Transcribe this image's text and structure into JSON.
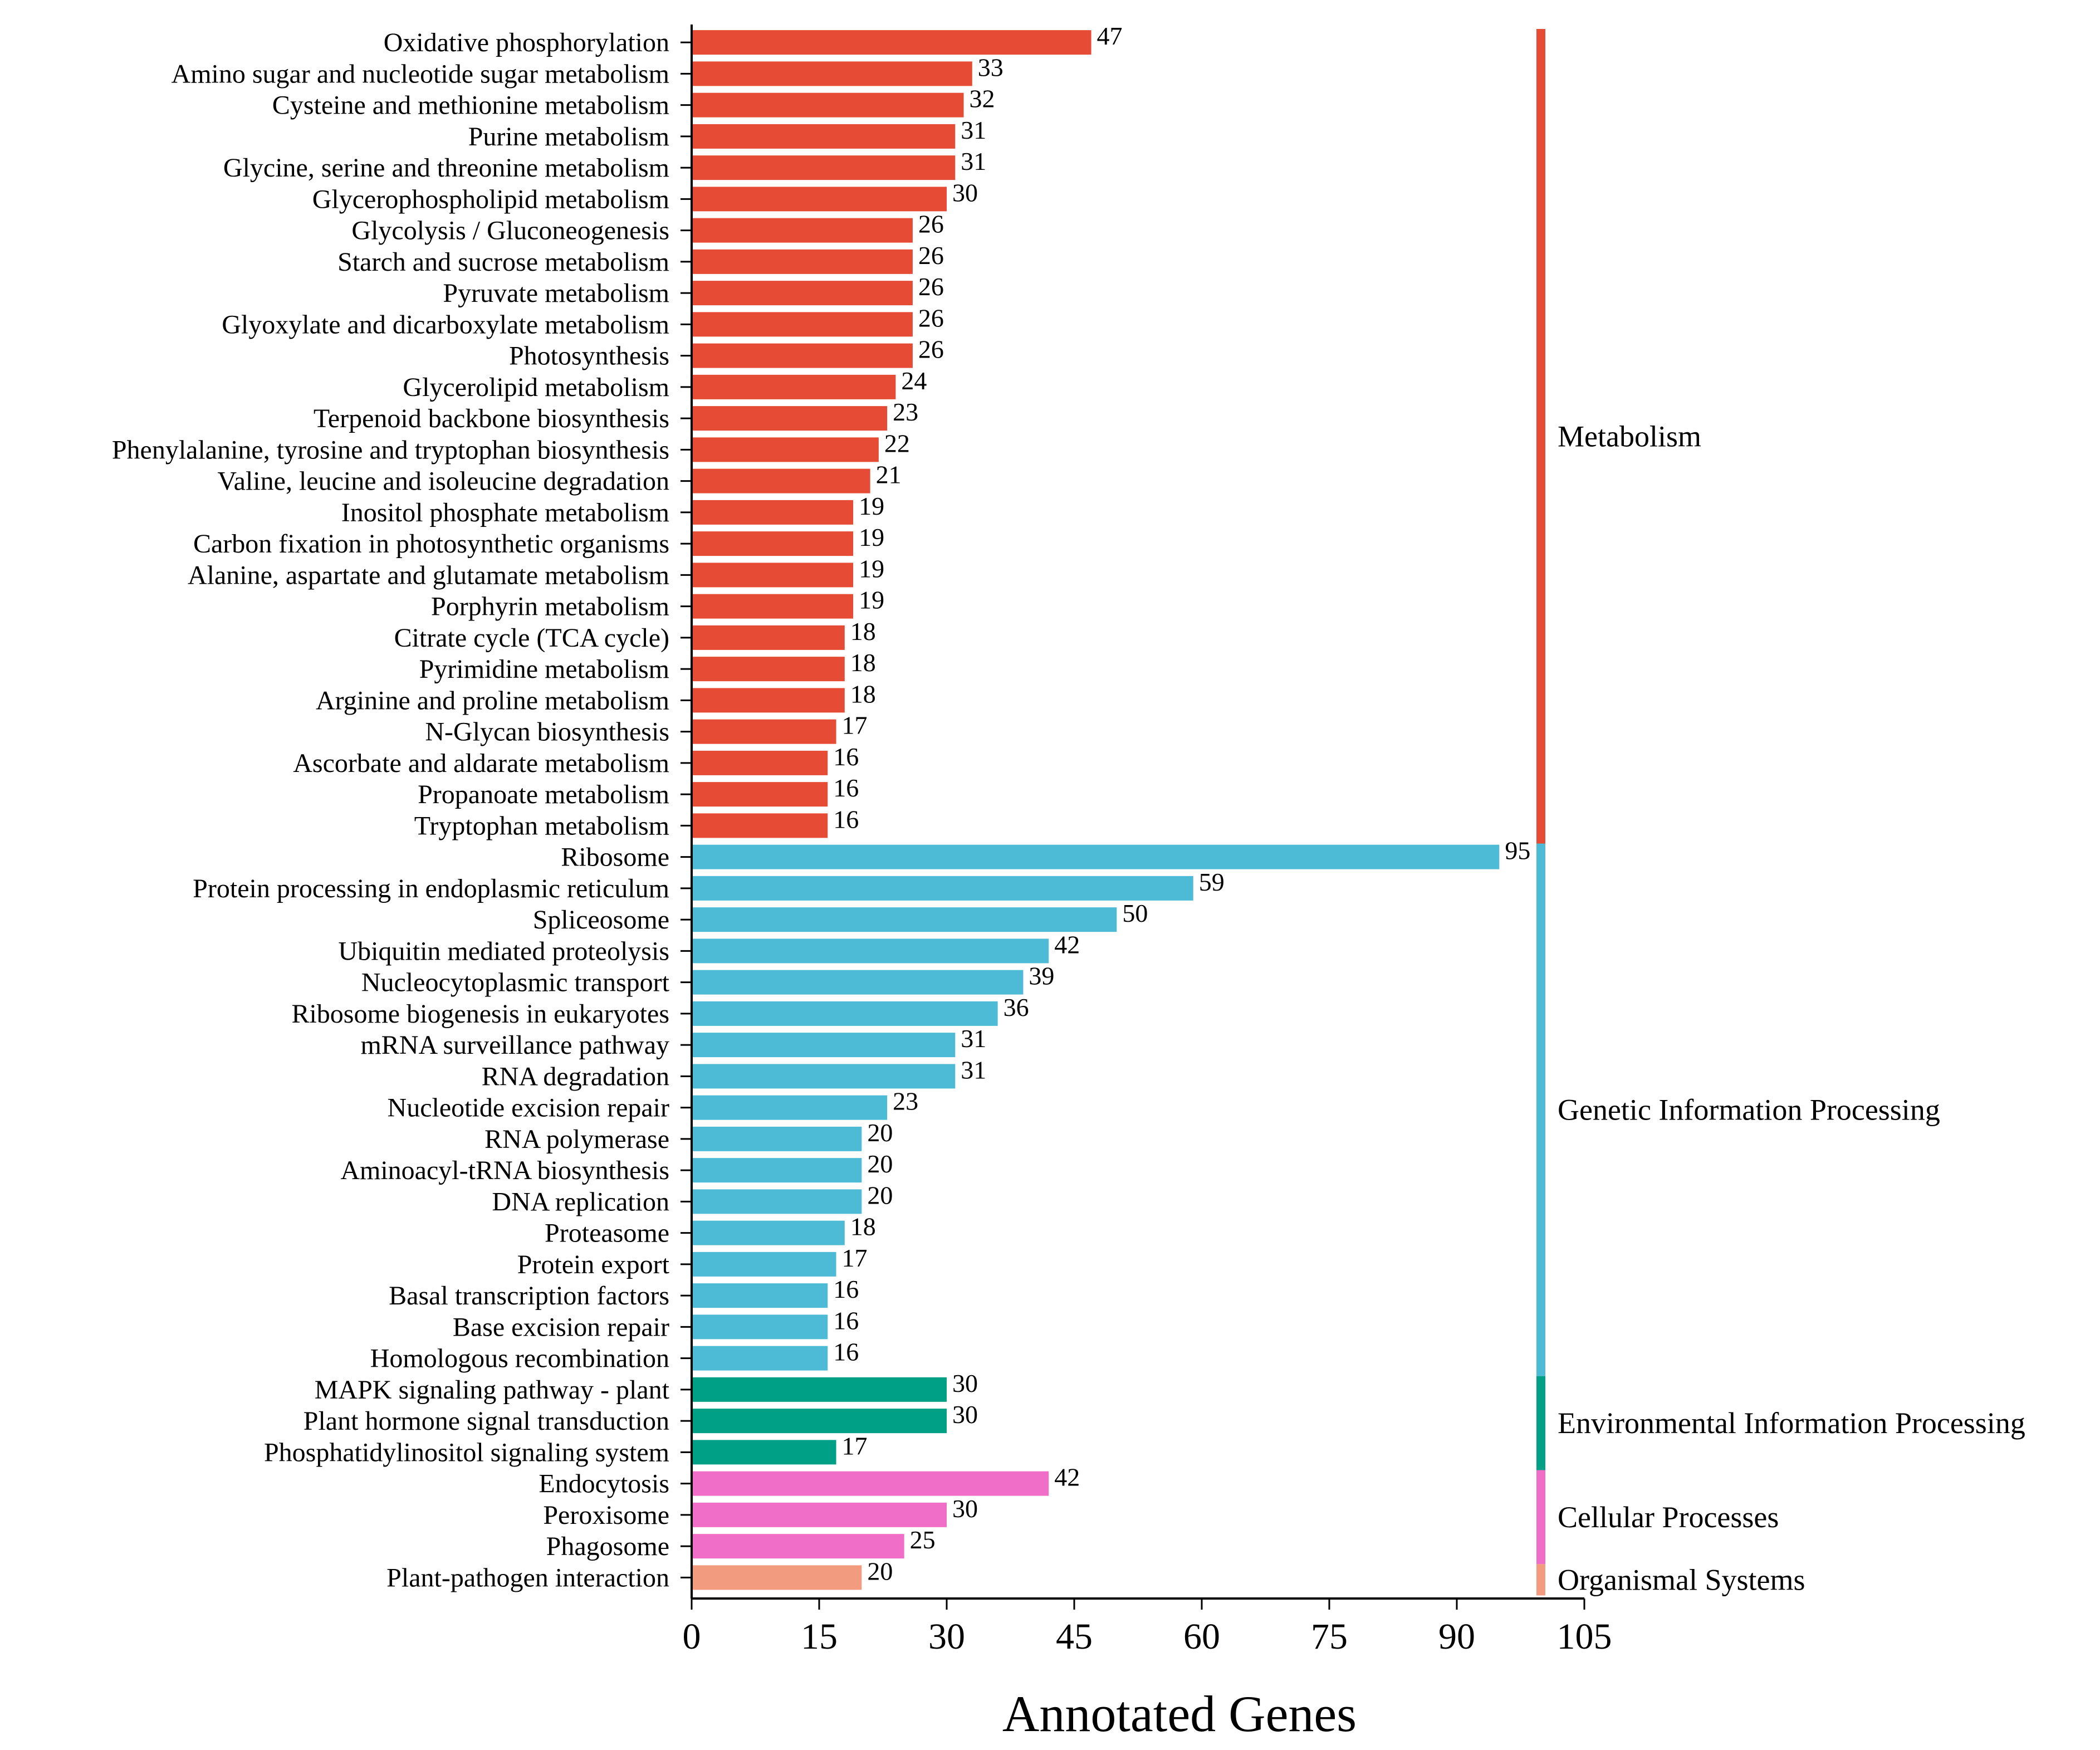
{
  "chart_data": {
    "type": "bar",
    "orientation": "horizontal",
    "xlabel": "Annotated Genes",
    "ylabel": "",
    "xlim": [
      0,
      105
    ],
    "xticks": [
      0,
      15,
      30,
      45,
      60,
      75,
      90,
      105
    ],
    "grid": false,
    "groups": [
      {
        "name": "Metabolism",
        "color": "#e64b35",
        "count": 26
      },
      {
        "name": "Genetic Information Processing",
        "color": "#4dbbd5",
        "count": 17
      },
      {
        "name": "Environmental Information Processing",
        "color": "#00a087",
        "count": 3
      },
      {
        "name": "Cellular Processes",
        "color": "#f06ec8",
        "count": 3
      },
      {
        "name": "Organismal Systems",
        "color": "#f39b7f",
        "count": 1
      }
    ],
    "categories": [
      "Oxidative phosphorylation",
      "Amino sugar and nucleotide sugar metabolism",
      "Cysteine and methionine metabolism",
      "Purine metabolism",
      "Glycine, serine and threonine metabolism",
      "Glycerophospholipid metabolism",
      "Glycolysis / Gluconeogenesis",
      "Starch and sucrose metabolism",
      "Pyruvate metabolism",
      "Glyoxylate and dicarboxylate metabolism",
      "Photosynthesis",
      "Glycerolipid metabolism",
      "Terpenoid backbone biosynthesis",
      "Phenylalanine, tyrosine and tryptophan biosynthesis",
      "Valine, leucine and isoleucine degradation",
      "Inositol phosphate metabolism",
      "Carbon fixation in photosynthetic organisms",
      "Alanine, aspartate and glutamate metabolism",
      "Porphyrin metabolism",
      "Citrate cycle (TCA cycle)",
      "Pyrimidine metabolism",
      "Arginine and proline metabolism",
      "N-Glycan biosynthesis",
      "Ascorbate and aldarate metabolism",
      "Propanoate metabolism",
      "Tryptophan metabolism",
      "Ribosome",
      "Protein processing in endoplasmic reticulum",
      "Spliceosome",
      "Ubiquitin mediated proteolysis",
      "Nucleocytoplasmic transport",
      "Ribosome biogenesis in eukaryotes",
      "mRNA surveillance pathway",
      "RNA degradation",
      "Nucleotide excision repair",
      "RNA polymerase",
      "Aminoacyl-tRNA biosynthesis",
      "DNA replication",
      "Proteasome",
      "Protein export",
      "Basal transcription factors",
      "Base excision repair",
      "Homologous recombination",
      "MAPK signaling pathway - plant",
      "Plant hormone signal transduction",
      "Phosphatidylinositol signaling system",
      "Endocytosis",
      "Peroxisome",
      "Phagosome",
      "Plant-pathogen interaction"
    ],
    "values": [
      47,
      33,
      32,
      31,
      31,
      30,
      26,
      26,
      26,
      26,
      26,
      24,
      23,
      22,
      21,
      19,
      19,
      19,
      19,
      18,
      18,
      18,
      17,
      16,
      16,
      16,
      95,
      59,
      50,
      42,
      39,
      36,
      31,
      31,
      23,
      20,
      20,
      20,
      18,
      17,
      16,
      16,
      16,
      30,
      30,
      17,
      42,
      30,
      25,
      20
    ]
  }
}
